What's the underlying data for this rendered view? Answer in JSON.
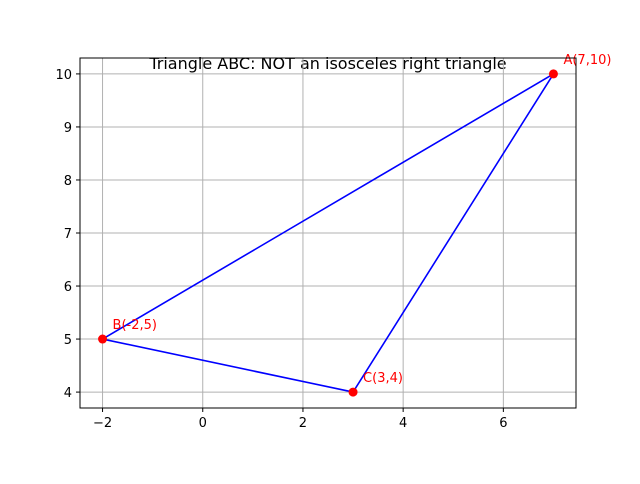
{
  "chart_data": {
    "type": "line",
    "title": "Triangle ABC: NOT an isosceles right triangle",
    "xlabel": "",
    "ylabel": "",
    "xlim": [
      -2.45,
      7.45
    ],
    "ylim": [
      3.7,
      10.3
    ],
    "xticks": [
      -2,
      0,
      2,
      4,
      6
    ],
    "yticks": [
      4,
      5,
      6,
      7,
      8,
      9,
      10
    ],
    "grid": true,
    "series": [
      {
        "x": [
          7,
          -2,
          3,
          7
        ],
        "y": [
          10,
          5,
          4,
          10
        ],
        "color": "#0000ff"
      }
    ],
    "points": [
      {
        "label": "A(7,10)",
        "x": 7,
        "y": 10
      },
      {
        "label": "B(-2,5)",
        "x": -2,
        "y": 5
      },
      {
        "label": "C(3,4)",
        "x": 3,
        "y": 4
      }
    ],
    "point_color": "#ff0000",
    "label_color": "#ff0000"
  }
}
